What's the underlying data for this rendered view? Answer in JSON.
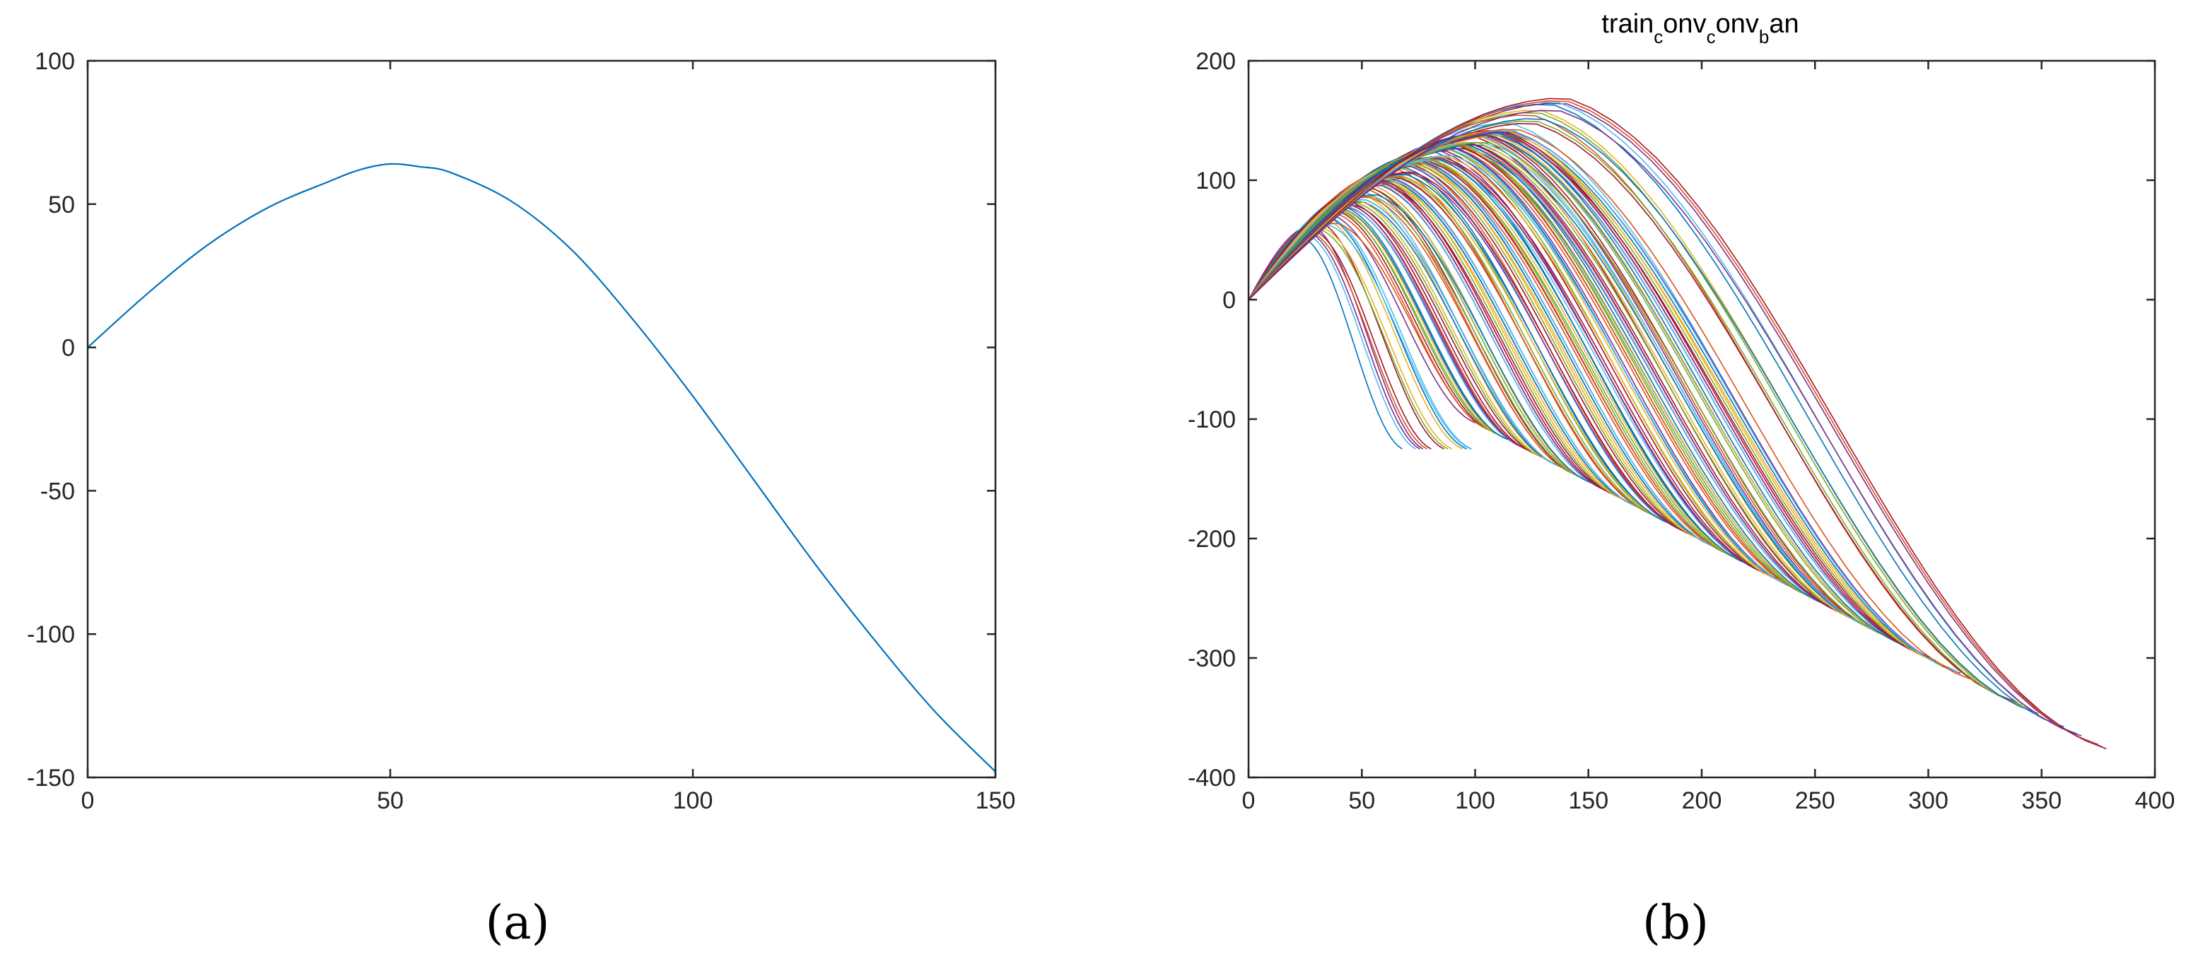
{
  "chart_data": [
    {
      "type": "line",
      "panel_label": "(a)",
      "title": "",
      "xlabel": "",
      "ylabel": "",
      "xlim": [
        0,
        150
      ],
      "ylim": [
        -150,
        100
      ],
      "xticks": [
        0,
        50,
        100,
        150
      ],
      "yticks": [
        -150,
        -100,
        -50,
        0,
        50,
        100
      ],
      "series": [
        {
          "color": "#0072BD",
          "x": [
            0,
            10,
            20,
            30,
            40,
            45,
            50,
            55,
            60,
            70,
            80,
            90,
            100,
            110,
            120,
            130,
            140,
            150
          ],
          "y": [
            0,
            19,
            36,
            49,
            58,
            62,
            64,
            63,
            61,
            51,
            34,
            10,
            -17,
            -46,
            -75,
            -102,
            -127,
            -148
          ]
        }
      ]
    },
    {
      "type": "line",
      "panel_label": "(b)",
      "title": "train_conv_conv_ban",
      "title_parts": [
        "train",
        "c",
        "onv",
        "c",
        "onv",
        "b",
        "an"
      ],
      "xlabel": "",
      "ylabel": "",
      "xlim": [
        0,
        400
      ],
      "ylim": [
        -400,
        200
      ],
      "xticks": [
        0,
        50,
        100,
        150,
        200,
        250,
        300,
        350,
        400
      ],
      "yticks": [
        -400,
        -300,
        -200,
        -100,
        0,
        100,
        200
      ],
      "grid": false,
      "note_series": "many overlapping trajectories; representative family parameterized by end x and peak",
      "colors": [
        "#0072BD",
        "#D95319",
        "#EDB120",
        "#7E2F8E",
        "#77AC30",
        "#4DBEEE",
        "#A2142F"
      ],
      "family": {
        "end_x": [
          72,
          80,
          88,
          95,
          102,
          108,
          112,
          118,
          124,
          130,
          135,
          140,
          146,
          150,
          155,
          160,
          165,
          170,
          175,
          180,
          185,
          190,
          195,
          200,
          205,
          210,
          215,
          220,
          225,
          230,
          235,
          240,
          245,
          250,
          255,
          260,
          265,
          270,
          275,
          280,
          283,
          290,
          295,
          300,
          305,
          310,
          316,
          340,
          346,
          364,
          378
        ],
        "peak_y": [
          55,
          58,
          62,
          65,
          68,
          72,
          75,
          78,
          80,
          83,
          85,
          88,
          90,
          92,
          95,
          97,
          99,
          101,
          103,
          105,
          107,
          109,
          111,
          112,
          114,
          116,
          117,
          119,
          120,
          122,
          123,
          125,
          126,
          128,
          129,
          130,
          131,
          133,
          134,
          135,
          136,
          137,
          138,
          140,
          141,
          142,
          144,
          152,
          155,
          163,
          165
        ]
      }
    }
  ]
}
